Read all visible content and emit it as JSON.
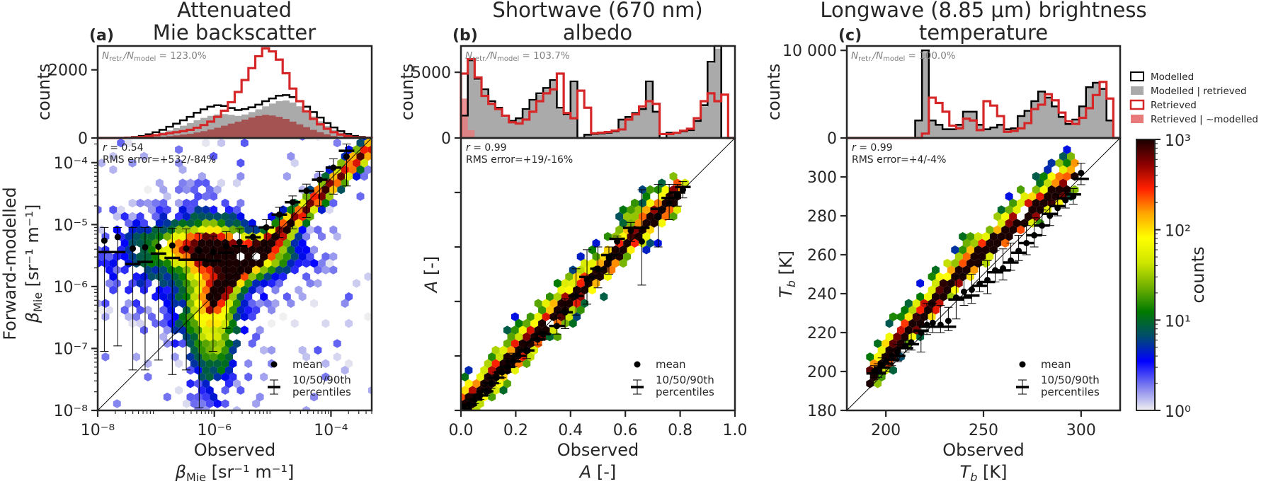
{
  "chart_data": [
    {
      "panel": "a",
      "panel_label": "(a)",
      "type": "scatter",
      "subtype": "hexbin-with-marginal-histogram",
      "title": [
        "Attenuated",
        "Mie backscatter"
      ],
      "xlabel": [
        "Observed",
        "βMie [sr⁻¹ m⁻¹]"
      ],
      "ylabel": [
        "Forward-modelled",
        "βMie [sr⁻¹ m⁻¹]"
      ],
      "xscale": "log",
      "yscale": "log",
      "xlim": [
        1e-08,
        0.0005
      ],
      "ylim": [
        1e-08,
        0.00025
      ],
      "xticks": [
        1e-08,
        1e-06,
        0.0001
      ],
      "xtick_labels": [
        "10⁻⁸",
        "10⁻⁶",
        "10⁻⁴"
      ],
      "yticks": [
        1e-08,
        1e-07,
        1e-06,
        1e-05,
        0.0001
      ],
      "ytick_labels": [
        "10⁻⁸",
        "10⁻⁷",
        "10⁻⁶",
        "10⁻⁵",
        "10⁻⁴"
      ],
      "stats": {
        "r": "r = 0.54",
        "rms": "RMS error=+532/-84%"
      },
      "ratio_text": {
        "prefix": "N",
        "sub1": "retr.",
        "mid": "/N",
        "sub2": "model",
        "value": " = 123.0%"
      },
      "hist": {
        "ylabel": "counts",
        "ylim": [
          0,
          2700
        ],
        "yticks": [
          0,
          2000
        ],
        "ytick_labels": [
          "0",
          "2000"
        ],
        "bins": 40,
        "modelled": [
          0,
          0,
          0,
          0,
          10,
          30,
          60,
          110,
          170,
          240,
          330,
          420,
          520,
          620,
          740,
          840,
          920,
          960,
          940,
          880,
          820,
          850,
          900,
          980,
          1080,
          1160,
          1240,
          1260,
          1200,
          1080,
          920,
          760,
          600,
          440,
          310,
          200,
          120,
          60,
          30,
          10
        ],
        "modelled_retrieved": [
          0,
          0,
          0,
          0,
          5,
          15,
          35,
          70,
          110,
          160,
          220,
          290,
          360,
          440,
          520,
          590,
          650,
          690,
          700,
          680,
          650,
          690,
          760,
          840,
          930,
          1010,
          1080,
          1100,
          1040,
          930,
          780,
          630,
          490,
          350,
          240,
          150,
          90,
          45,
          20,
          8
        ],
        "retrieved": [
          0,
          0,
          0,
          0,
          5,
          15,
          30,
          55,
          80,
          110,
          140,
          170,
          200,
          240,
          300,
          380,
          480,
          620,
          800,
          1050,
          1350,
          1700,
          2050,
          2400,
          2630,
          2540,
          2300,
          1900,
          1450,
          1080,
          780,
          560,
          400,
          270,
          170,
          100,
          50,
          20,
          8,
          3
        ],
        "retrieved_not_modelled": [
          0,
          0,
          0,
          0,
          0,
          0,
          5,
          10,
          20,
          35,
          55,
          75,
          100,
          125,
          160,
          200,
          250,
          300,
          360,
          420,
          480,
          540,
          600,
          650,
          680,
          660,
          620,
          560,
          480,
          400,
          320,
          240,
          170,
          110,
          60,
          30,
          15,
          5,
          2,
          0
        ]
      },
      "percentiles": {
        "x": [
          1.3e-08,
          2.2e-08,
          4e-08,
          6.5e-08,
          1.1e-07,
          1.9e-07,
          3.3e-07,
          5.5e-07,
          9.5e-07,
          1.6e-06,
          2.7e-06,
          4.6e-06,
          7.8e-06,
          1.3e-05,
          2.2e-05,
          3.8e-05,
          6.4e-05,
          0.00011,
          0.000185
        ],
        "mean": [
          5.5e-06,
          6.3e-06,
          4.1e-06,
          4.3e-06,
          4.4e-06,
          4.6e-06,
          4.1e-06,
          3.8e-06,
          3.6e-06,
          4.5e-06,
          5.2e-06,
          6.3e-06,
          9e-06,
          1.45e-05,
          2.3e-05,
          3.5e-05,
          5.3e-05,
          8.3e-05,
          0.000125
        ],
        "p10": [
          9e-08,
          1.1e-07,
          4.5e-08,
          4.5e-08,
          6.5e-08,
          3.8e-08,
          4.5e-08,
          1.1e-08,
          9e-08,
          2.1e-07,
          1.6e-06,
          2.7e-06,
          3.8e-06,
          6.2e-06,
          8.5e-06,
          1.3e-05,
          2e-05,
          3.1e-05,
          4.2e-05
        ],
        "p50": [
          3.6e-06,
          3.6e-06,
          2.3e-06,
          2.5e-06,
          3.4e-06,
          2.9e-06,
          2.7e-06,
          2.7e-06,
          2.6e-06,
          3.5e-06,
          4.5e-06,
          6.2e-06,
          9e-06,
          1.45e-05,
          2.3e-05,
          3.5e-05,
          5.3e-05,
          8.3e-05,
          0.000155
        ],
        "p90": [
          9e-06,
          9e-06,
          9e-06,
          9e-06,
          9e-06,
          8.7e-06,
          8.5e-06,
          7.3e-06,
          6.5e-06,
          7.7e-06,
          8.5e-06,
          9.5e-06,
          1.2e-05,
          1.9e-05,
          2.9e-05,
          4.5e-05,
          7.2e-05,
          0.000115,
          0.0002
        ]
      },
      "legend": {
        "mean": "mean",
        "percentiles": [
          "10/50/90th",
          "percentiles"
        ],
        "location": "lower-right"
      }
    },
    {
      "panel": "b",
      "panel_label": "(b)",
      "type": "scatter",
      "subtype": "hexbin-with-marginal-histogram",
      "title": [
        "Shortwave (670 nm)",
        "albedo"
      ],
      "xlabel": [
        "Observed",
        "A [-]"
      ],
      "ylabel": [
        "A [-]"
      ],
      "xscale": "linear",
      "yscale": "linear",
      "xlim": [
        0,
        1.0
      ],
      "ylim": [
        0,
        1.0
      ],
      "xticks": [
        0,
        0.2,
        0.4,
        0.6,
        0.8,
        1.0
      ],
      "xtick_labels": [
        "0.0",
        "0.2",
        "0.4",
        "0.6",
        "0.8",
        "1.0"
      ],
      "yticks": [
        0,
        0.2,
        0.4,
        0.6,
        0.8
      ],
      "ytick_labels": [
        "",
        "",
        "",
        "",
        ""
      ],
      "stats": {
        "r": "r = 0.99",
        "rms": "RMS error=+19/-16%"
      },
      "ratio_text": {
        "prefix": "N",
        "sub1": "retr.",
        "mid": "/N",
        "sub2": "model",
        "value": " = 103.7%"
      },
      "hist": {
        "ylabel": "counts",
        "ylim": [
          0,
          7000
        ],
        "yticks": [
          0,
          5000
        ],
        "ytick_labels": [
          "0",
          "5000"
        ],
        "bins": 40,
        "modelled": [
          1700,
          5900,
          4500,
          3700,
          2800,
          2300,
          1700,
          1300,
          1500,
          2200,
          2900,
          3400,
          3800,
          4400,
          2300,
          1800,
          4300,
          0,
          250,
          300,
          350,
          400,
          500,
          1400,
          1600,
          1900,
          2200,
          4300,
          2000,
          0,
          400,
          400,
          500,
          600,
          1300,
          2500,
          5800,
          7000,
          0,
          0
        ],
        "modelled_retrieved": [
          1600,
          5800,
          4400,
          3600,
          2700,
          2200,
          1600,
          1250,
          1450,
          2100,
          2800,
          3300,
          3700,
          4300,
          2200,
          1700,
          4200,
          0,
          240,
          290,
          340,
          390,
          480,
          1350,
          1550,
          1850,
          2150,
          4200,
          1950,
          0,
          390,
          390,
          480,
          580,
          1250,
          2400,
          5700,
          6800,
          0,
          0
        ],
        "retrieved": [
          4900,
          6000,
          4600,
          3200,
          2600,
          2200,
          1700,
          1200,
          1100,
          1400,
          2000,
          2800,
          3400,
          3700,
          4900,
          1900,
          1500,
          3600,
          2300,
          350,
          400,
          450,
          550,
          650,
          1400,
          1800,
          2400,
          2800,
          2600,
          300,
          300,
          400,
          550,
          700,
          1500,
          2800,
          3400,
          2800,
          3300,
          0
        ],
        "retrieved_not_modelled": [
          3000,
          600,
          0,
          0,
          0,
          0,
          0,
          0,
          0,
          0,
          0,
          0,
          0,
          0,
          0,
          0,
          0,
          0,
          0,
          0,
          0,
          0,
          0,
          0,
          0,
          0,
          0,
          0,
          0,
          0,
          0,
          0,
          0,
          0,
          0,
          0,
          0,
          0,
          0,
          0
        ]
      },
      "percentiles": {
        "x": [
          0.012,
          0.03,
          0.05,
          0.07,
          0.09,
          0.11,
          0.13,
          0.15,
          0.17,
          0.19,
          0.21,
          0.24,
          0.28,
          0.3,
          0.35,
          0.38,
          0.42,
          0.46,
          0.5,
          0.54,
          0.57,
          0.62,
          0.66,
          0.72,
          0.76,
          0.79,
          0.81
        ],
        "mean": [
          0.008,
          0.022,
          0.04,
          0.055,
          0.07,
          0.1,
          0.12,
          0.14,
          0.16,
          0.18,
          0.2,
          0.22,
          0.26,
          0.28,
          0.31,
          0.36,
          0.42,
          0.48,
          0.52,
          0.56,
          0.62,
          0.66,
          0.62,
          0.71,
          0.76,
          0.79,
          0.81
        ],
        "p10": [
          0.0,
          0.01,
          0.025,
          0.04,
          0.055,
          0.08,
          0.1,
          0.12,
          0.14,
          0.16,
          0.18,
          0.19,
          0.24,
          0.26,
          0.28,
          0.3,
          0.35,
          0.39,
          0.45,
          0.5,
          0.57,
          0.62,
          0.46,
          0.6,
          0.7,
          0.75,
          0.78
        ],
        "p50": [
          0.007,
          0.02,
          0.04,
          0.055,
          0.07,
          0.1,
          0.12,
          0.14,
          0.16,
          0.18,
          0.2,
          0.22,
          0.26,
          0.28,
          0.31,
          0.36,
          0.42,
          0.49,
          0.52,
          0.57,
          0.63,
          0.67,
          0.67,
          0.74,
          0.78,
          0.8,
          0.82
        ],
        "p90": [
          0.02,
          0.04,
          0.06,
          0.07,
          0.09,
          0.12,
          0.14,
          0.16,
          0.19,
          0.21,
          0.23,
          0.25,
          0.28,
          0.29,
          0.34,
          0.41,
          0.52,
          0.59,
          0.6,
          0.6,
          0.64,
          0.69,
          0.81,
          0.83,
          0.83,
          0.83,
          0.84
        ]
      },
      "legend": {
        "mean": "mean",
        "percentiles": [
          "10/50/90th",
          "percentiles"
        ],
        "location": "lower-right"
      }
    },
    {
      "panel": "c",
      "panel_label": "(c)",
      "type": "scatter",
      "subtype": "hexbin-with-marginal-histogram",
      "title": [
        "Longwave (8.85 μm) brightness",
        "temperature"
      ],
      "xlabel": [
        "Observed",
        "Tb [K]"
      ],
      "ylabel": [
        "Tb [K]"
      ],
      "xscale": "linear",
      "yscale": "linear",
      "xlim": [
        180,
        320
      ],
      "ylim": [
        180,
        320
      ],
      "xticks": [
        200,
        250,
        300
      ],
      "xtick_labels": [
        "200",
        "250",
        "300"
      ],
      "yticks": [
        180,
        200,
        220,
        240,
        260,
        280,
        300
      ],
      "ytick_labels": [
        "180",
        "200",
        "220",
        "240",
        "260",
        "280",
        "300"
      ],
      "stats": {
        "r": "r = 0.99",
        "rms": "RMS error=+4/-4%"
      },
      "ratio_text": {
        "prefix": "N",
        "sub1": "retr.",
        "mid": "/N",
        "sub2": "model",
        "value": " = 100.0%"
      },
      "hist": {
        "ylabel": "counts",
        "ylim": [
          0,
          10500
        ],
        "yticks": [
          0,
          10000
        ],
        "ytick_labels": [
          "0",
          "10 000"
        ],
        "bins": 40,
        "modelled": [
          0,
          0,
          0,
          0,
          0,
          0,
          0,
          0,
          0,
          0,
          2000,
          10000,
          2000,
          1500,
          1000,
          1000,
          1500,
          3000,
          3000,
          1500,
          1000,
          1200,
          1500,
          1000,
          1100,
          2500,
          3100,
          4200,
          5300,
          4600,
          3600,
          2400,
          1600,
          2100,
          3600,
          5800,
          6300,
          5600,
          2000,
          0
        ],
        "modelled_retrieved": [
          0,
          0,
          0,
          0,
          0,
          0,
          0,
          0,
          0,
          0,
          1900,
          9800,
          1900,
          1400,
          950,
          950,
          1400,
          2900,
          2900,
          1400,
          950,
          1150,
          1400,
          950,
          1050,
          2400,
          3000,
          4100,
          5200,
          4500,
          3500,
          2300,
          1500,
          2000,
          3500,
          5700,
          6200,
          5500,
          1900,
          0
        ],
        "retrieved": [
          0,
          0,
          0,
          0,
          0,
          0,
          0,
          0,
          0,
          0,
          0,
          500,
          4600,
          4000,
          3000,
          1400,
          1100,
          2200,
          2000,
          900,
          4200,
          3700,
          2500,
          700,
          800,
          1100,
          1700,
          3300,
          3800,
          5000,
          4300,
          2900,
          1900,
          1600,
          2300,
          3400,
          4900,
          6400,
          4500,
          0
        ],
        "retrieved_not_modelled": [
          0,
          0,
          0,
          0,
          0,
          0,
          0,
          0,
          0,
          0,
          0,
          0,
          0,
          0,
          0,
          0,
          0,
          0,
          0,
          0,
          0,
          0,
          0,
          0,
          0,
          0,
          0,
          0,
          0,
          0,
          0,
          0,
          0,
          0,
          0,
          0,
          0,
          0,
          0,
          0
        ]
      },
      "percentiles": {
        "x": [
          194,
          196,
          198,
          200,
          203,
          206,
          210,
          213,
          218,
          221,
          224,
          228,
          232,
          236,
          240,
          244,
          248,
          252,
          256,
          260,
          264,
          268,
          272,
          276,
          280,
          284,
          288,
          292,
          296,
          300
        ],
        "mean": [
          200,
          200,
          203,
          205,
          208,
          210,
          213,
          215,
          220,
          224,
          225,
          224,
          226,
          238,
          241,
          242,
          245,
          247,
          252,
          253,
          257,
          262,
          266,
          270,
          275,
          280,
          284,
          288,
          290,
          302
        ],
        "p10": [
          197,
          197,
          199,
          200,
          203,
          205,
          210,
          211,
          210,
          219,
          220,
          220,
          221,
          227,
          234,
          235,
          241,
          240,
          246,
          247,
          252,
          257,
          260,
          264,
          270,
          275,
          280,
          284,
          286,
          296
        ],
        "p50": [
          199,
          199,
          202,
          204,
          206,
          208,
          212,
          214,
          221,
          223,
          223,
          223,
          223,
          237,
          238,
          239,
          244,
          246,
          251,
          252,
          256,
          261,
          266,
          270,
          275,
          281,
          285,
          289,
          291,
          299
        ],
        "p90": [
          203,
          204,
          207,
          209,
          211,
          214,
          216,
          220,
          229,
          235,
          235,
          234,
          233,
          249,
          250,
          250,
          255,
          257,
          262,
          263,
          266,
          270,
          275,
          279,
          283,
          288,
          291,
          293,
          294,
          307
        ]
      },
      "legend": {
        "mean": "mean",
        "percentiles": [
          "10/50/90th",
          "percentiles"
        ],
        "location": "lower-right"
      }
    }
  ],
  "hist_legend": {
    "items": [
      {
        "label": "Modelled",
        "style": "outline-black"
      },
      {
        "label": "Modelled | retrieved",
        "style": "fill-gray"
      },
      {
        "label": "Retrieved",
        "style": "outline-red"
      },
      {
        "label": "Retrieved | ~modelled",
        "style": "fill-lightred"
      }
    ]
  },
  "colorbar": {
    "label": "counts",
    "scale": "log",
    "range": [
      1,
      1000
    ],
    "ticks": [
      1,
      10,
      100,
      1000
    ],
    "tick_labels": [
      "10⁰",
      "10¹",
      "10²",
      "10³"
    ],
    "colormap_stops": [
      "#f0f0f0",
      "#7b7bef",
      "#0000ff",
      "#004c6e",
      "#007a00",
      "#6fb000",
      "#cfe600",
      "#ffff00",
      "#ffa500",
      "#ff2000",
      "#8b0000",
      "#1a0000"
    ]
  },
  "colors": {
    "modelled_outline": "#000000",
    "modelled_fill": "#aaaaaa",
    "retrieved_outline": "#d62728",
    "retrieved_fill": "#e87a7c",
    "axis": "#262626",
    "ratio_text": "#808080"
  }
}
